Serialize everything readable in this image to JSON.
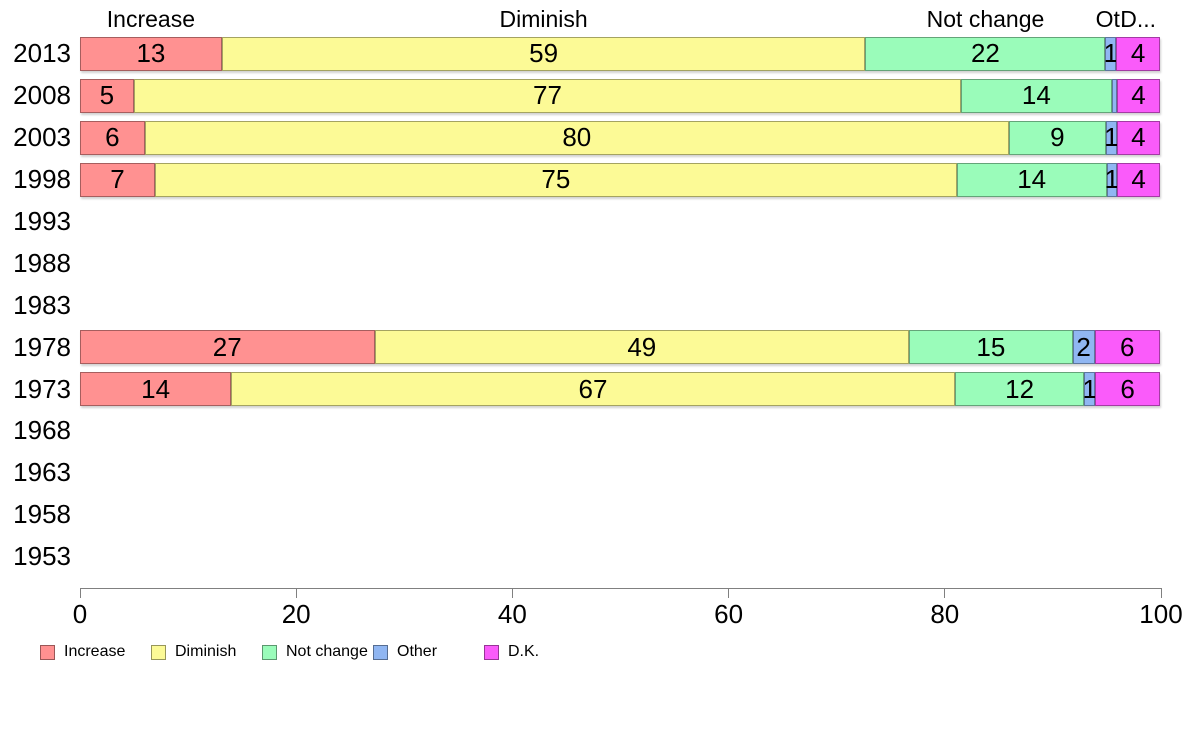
{
  "chart_data": {
    "type": "bar",
    "orientation": "horizontal",
    "stacked": true,
    "unit": "percent",
    "xlim": [
      0,
      100
    ],
    "x_ticks": [
      0,
      20,
      40,
      60,
      80,
      100
    ],
    "grid": false,
    "legend_position": "bottom",
    "series_names": [
      "Increase",
      "Diminish",
      "Not change",
      "Other",
      "D.K."
    ],
    "column_headers": [
      "Increase",
      "Diminish",
      "Not change",
      "Ot.",
      "D..."
    ],
    "colors": {
      "Increase": "#FF9191",
      "Diminish": "#FCFA96",
      "Not change": "#9AFCBA",
      "Other": "#90B6F2",
      "D.K.": "#FA5BFA"
    },
    "axis_color": "#808080",
    "text_color": "#000000",
    "rows": [
      {
        "year": "2013",
        "values": [
          13,
          59,
          22,
          1,
          4
        ]
      },
      {
        "year": "2008",
        "values": [
          5,
          77,
          14,
          0.5,
          4
        ]
      },
      {
        "year": "2003",
        "values": [
          6,
          80,
          9,
          1,
          4
        ]
      },
      {
        "year": "1998",
        "values": [
          7,
          75,
          14,
          1,
          4
        ]
      },
      {
        "year": "1993",
        "values": null
      },
      {
        "year": "1988",
        "values": null
      },
      {
        "year": "1983",
        "values": null
      },
      {
        "year": "1978",
        "values": [
          27,
          49,
          15,
          2,
          6
        ]
      },
      {
        "year": "1973",
        "values": [
          14,
          67,
          12,
          1,
          6
        ]
      },
      {
        "year": "1968",
        "values": null
      },
      {
        "year": "1963",
        "values": null
      },
      {
        "year": "1958",
        "values": null
      },
      {
        "year": "1953",
        "values": null
      }
    ]
  }
}
